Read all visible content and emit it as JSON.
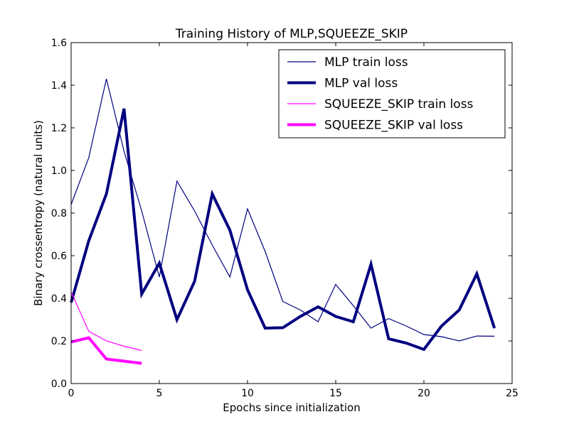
{
  "chart_data": {
    "type": "line",
    "title": "Training History of MLP,SQUEEZE_SKIP",
    "xlabel": "Epochs since initialization",
    "ylabel": "Binary crossentropy (natural units)",
    "xlim": [
      0,
      25
    ],
    "ylim": [
      0.0,
      1.6
    ],
    "xticks": [
      "0",
      "5",
      "10",
      "15",
      "20",
      "25"
    ],
    "yticks": [
      "0.0",
      "0.2",
      "0.4",
      "0.6",
      "0.8",
      "1.0",
      "1.2",
      "1.4",
      "1.6"
    ],
    "grid": false,
    "legend_position": "top-right",
    "series": [
      {
        "name": "MLP train loss",
        "color": "#000080",
        "style": "thin",
        "x": [
          0,
          1,
          2,
          3,
          4,
          5,
          6,
          7,
          8,
          9,
          10,
          11,
          12,
          13,
          14,
          15,
          16,
          17,
          18,
          19,
          20,
          21,
          22,
          23,
          24
        ],
        "y": [
          0.84,
          1.06,
          1.43,
          1.09,
          0.81,
          0.5,
          0.95,
          0.81,
          0.65,
          0.5,
          0.82,
          0.62,
          0.385,
          0.345,
          0.29,
          0.465,
          0.365,
          0.26,
          0.305,
          0.27,
          0.23,
          0.22,
          0.2,
          0.223,
          0.222
        ]
      },
      {
        "name": "MLP val loss",
        "color": "#000080",
        "style": "thick",
        "x": [
          0,
          1,
          2,
          3,
          4,
          5,
          6,
          7,
          8,
          9,
          10,
          11,
          12,
          13,
          14,
          15,
          16,
          17,
          18,
          19,
          20,
          21,
          22,
          23,
          24
        ],
        "y": [
          0.38,
          0.67,
          0.89,
          1.29,
          0.42,
          0.565,
          0.3,
          0.48,
          0.89,
          0.72,
          0.44,
          0.26,
          0.262,
          0.315,
          0.36,
          0.315,
          0.29,
          0.56,
          0.21,
          0.19,
          0.16,
          0.27,
          0.345,
          0.515,
          0.26
        ]
      },
      {
        "name": "SQUEEZE_SKIP train loss",
        "color": "#FF00FF",
        "style": "thin",
        "x": [
          0,
          1,
          2,
          3,
          4
        ],
        "y": [
          0.43,
          0.245,
          0.2,
          0.175,
          0.155
        ]
      },
      {
        "name": "SQUEEZE_SKIP val loss",
        "color": "#FF00FF",
        "style": "thick",
        "x": [
          0,
          1,
          2,
          3,
          4
        ],
        "y": [
          0.195,
          0.215,
          0.115,
          0.105,
          0.095
        ]
      }
    ]
  }
}
